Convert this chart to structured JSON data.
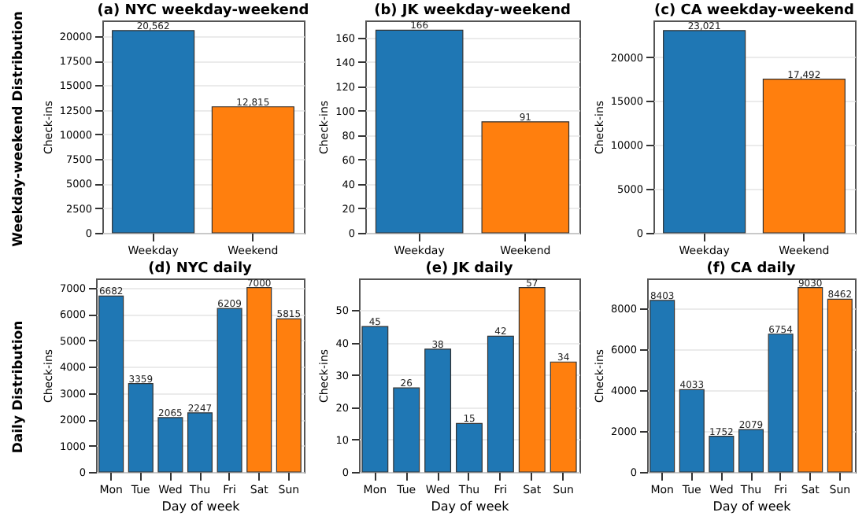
{
  "chart_data": [
    {
      "type": "bar",
      "title": "(a) NYC weekday-weekend",
      "ylabel": "Check-ins",
      "categories": [
        "Weekday",
        "Weekend"
      ],
      "values": [
        20562,
        12815
      ],
      "colors": [
        "#1f77b4",
        "#ff7f0e"
      ],
      "value_labels": [
        "20,562",
        "12,815"
      ],
      "ylim": [
        0,
        21590
      ],
      "yticks": [
        0,
        2500,
        5000,
        7500,
        10000,
        12500,
        15000,
        17500,
        20000
      ],
      "grid": "y",
      "annotations": [
        "Weekday-weekend Distribution"
      ]
    },
    {
      "type": "bar",
      "title": "(b) JK weekday-weekend",
      "ylabel": "Check-ins",
      "categories": [
        "Weekday",
        "Weekend"
      ],
      "values": [
        166,
        91
      ],
      "colors": [
        "#1f77b4",
        "#ff7f0e"
      ],
      "value_labels": [
        "166",
        "91"
      ],
      "ylim": [
        0,
        174
      ],
      "yticks": [
        0,
        20,
        40,
        60,
        80,
        100,
        120,
        140,
        160
      ],
      "grid": "y"
    },
    {
      "type": "bar",
      "title": "(c) CA weekday-weekend",
      "ylabel": "Check-ins",
      "categories": [
        "Weekday",
        "Weekend"
      ],
      "values": [
        23021,
        17492
      ],
      "colors": [
        "#1f77b4",
        "#ff7f0e"
      ],
      "value_labels": [
        "23,021",
        "17,492"
      ],
      "ylim": [
        0,
        24170
      ],
      "yticks": [
        0,
        5000,
        10000,
        15000,
        20000
      ],
      "grid": "y"
    },
    {
      "type": "bar",
      "title": "(d) NYC daily",
      "xlabel": "Day of week",
      "ylabel": "Check-ins",
      "categories": [
        "Mon",
        "Tue",
        "Wed",
        "Thu",
        "Fri",
        "Sat",
        "Sun"
      ],
      "values": [
        6682,
        3359,
        2065,
        2247,
        6209,
        7000,
        5815
      ],
      "colors": [
        "#1f77b4",
        "#1f77b4",
        "#1f77b4",
        "#1f77b4",
        "#1f77b4",
        "#ff7f0e",
        "#ff7f0e"
      ],
      "data_labels": true,
      "ylim": [
        0,
        7350
      ],
      "yticks": [
        0,
        1000,
        2000,
        3000,
        4000,
        5000,
        6000,
        7000
      ],
      "grid": "y",
      "annotations": [
        "Daily Distribution"
      ]
    },
    {
      "type": "bar",
      "title": "(e) JK daily",
      "xlabel": "Day of week",
      "ylabel": "Check-ins",
      "categories": [
        "Mon",
        "Tue",
        "Wed",
        "Thu",
        "Fri",
        "Sat",
        "Sun"
      ],
      "values": [
        45,
        26,
        38,
        15,
        42,
        57,
        34
      ],
      "colors": [
        "#1f77b4",
        "#1f77b4",
        "#1f77b4",
        "#1f77b4",
        "#1f77b4",
        "#ff7f0e",
        "#ff7f0e"
      ],
      "data_labels": true,
      "ylim": [
        0,
        59.85
      ],
      "yticks": [
        0,
        10,
        20,
        30,
        40,
        50
      ],
      "grid": "y"
    },
    {
      "type": "bar",
      "title": "(f) CA daily",
      "xlabel": "Day of week",
      "ylabel": "Check-ins",
      "categories": [
        "Mon",
        "Tue",
        "Wed",
        "Thu",
        "Fri",
        "Sat",
        "Sun"
      ],
      "values": [
        8403,
        4033,
        1752,
        2079,
        6754,
        9030,
        8462
      ],
      "colors": [
        "#1f77b4",
        "#1f77b4",
        "#1f77b4",
        "#1f77b4",
        "#1f77b4",
        "#ff7f0e",
        "#ff7f0e"
      ],
      "data_labels": true,
      "ylim": [
        0,
        9480
      ],
      "yticks": [
        0,
        2000,
        4000,
        6000,
        8000
      ],
      "grid": "y"
    }
  ]
}
